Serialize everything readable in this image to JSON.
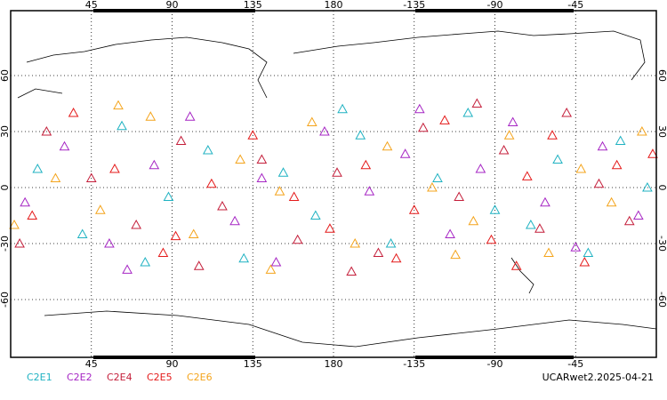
{
  "chart_data": {
    "type": "scatter",
    "xlim": [
      0,
      360
    ],
    "ylim": [
      -90,
      90
    ],
    "xticks": [
      45,
      90,
      135,
      180,
      {
        "value": 225,
        "label": "-135"
      },
      {
        "value": 270,
        "label": "-90"
      },
      {
        "value": 315,
        "label": "-45"
      }
    ],
    "yticks": [
      -60,
      -30,
      0,
      30,
      60
    ],
    "grid": true,
    "label": "UCARwet2.2025-04-21",
    "series": [
      {
        "name": "C2E1",
        "color": "#1fb2c2",
        "x": [
          15,
          40,
          62,
          88,
          110,
          130,
          152,
          170,
          195,
          212,
          238,
          255,
          270,
          290,
          305,
          322,
          340,
          355,
          75,
          185
        ],
        "values": [
          10,
          -25,
          33,
          -5,
          20,
          -38,
          8,
          -15,
          28,
          -30,
          5,
          40,
          -12,
          -20,
          15,
          -35,
          25,
          0,
          -40,
          42
        ]
      },
      {
        "name": "C2E2",
        "color": "#a626c4",
        "x": [
          8,
          30,
          55,
          80,
          100,
          125,
          148,
          175,
          200,
          220,
          245,
          262,
          280,
          298,
          315,
          330,
          350,
          140,
          228,
          65
        ],
        "values": [
          -8,
          22,
          -30,
          12,
          38,
          -18,
          -40,
          30,
          -2,
          18,
          -25,
          10,
          35,
          -8,
          -32,
          22,
          -15,
          5,
          42,
          -44
        ]
      },
      {
        "name": "C2E4",
        "color": "#c41e3a",
        "x": [
          20,
          45,
          70,
          95,
          118,
          140,
          160,
          182,
          205,
          230,
          250,
          275,
          295,
          310,
          328,
          345,
          5,
          105,
          260,
          190
        ],
        "values": [
          30,
          5,
          -20,
          25,
          -10,
          15,
          -28,
          8,
          -35,
          32,
          -5,
          20,
          -22,
          40,
          2,
          -18,
          -30,
          -42,
          45,
          -45
        ]
      },
      {
        "name": "C2E5",
        "color": "#e41a1a",
        "x": [
          12,
          35,
          58,
          85,
          112,
          135,
          158,
          178,
          198,
          225,
          242,
          268,
          288,
          302,
          320,
          338,
          358,
          92,
          215,
          282
        ],
        "values": [
          -15,
          40,
          10,
          -35,
          2,
          28,
          -5,
          -22,
          12,
          -12,
          36,
          -28,
          6,
          28,
          -40,
          12,
          18,
          -26,
          -38,
          -42
        ]
      },
      {
        "name": "C2E6",
        "color": "#f4a41c",
        "x": [
          25,
          50,
          78,
          102,
          128,
          150,
          168,
          192,
          210,
          235,
          258,
          278,
          300,
          318,
          335,
          352,
          2,
          145,
          248,
          60
        ],
        "values": [
          5,
          -12,
          38,
          -25,
          15,
          -2,
          35,
          -30,
          22,
          0,
          -18,
          28,
          -35,
          10,
          -8,
          30,
          -20,
          -44,
          -36,
          44
        ]
      }
    ]
  }
}
